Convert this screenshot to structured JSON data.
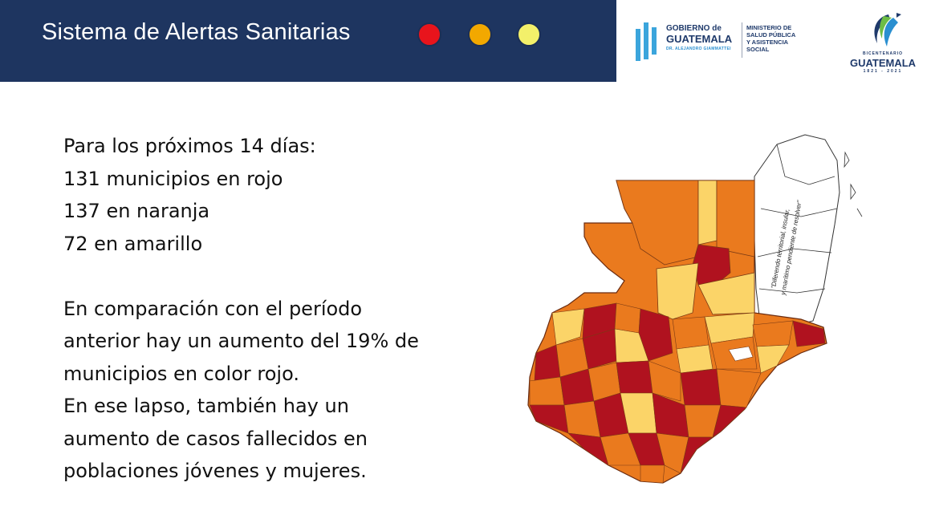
{
  "header": {
    "title": "Sistema de Alertas Sanitarias",
    "alert_levels": [
      {
        "name": "rojo",
        "color": "#e8141c"
      },
      {
        "name": "naranja",
        "color": "#f2a800"
      },
      {
        "name": "amarillo",
        "color": "#f3f06a"
      }
    ]
  },
  "logos": {
    "gobierno": {
      "line1": "GOBIERNO de",
      "line2": "GUATEMALA",
      "line3": "DR. ALEJANDRO GIAMMATTEI",
      "ministry": "MINISTERIO DE\nSALUD PÚBLICA\nY ASISTENCIA\nSOCIAL"
    },
    "bicentenario": {
      "top": "BICENTENARIO",
      "main": "GUATEMALA",
      "years": "1821 - 2021"
    }
  },
  "content": {
    "lines_group1": [
      "Para los próximos 14 días:",
      "131 municipios en rojo",
      "137 en naranja",
      "72 en amarillo"
    ],
    "lines_group2": [
      "En comparación con el período",
      "anterior hay un aumento del 19% de",
      "municipios en color rojo.",
      "En ese lapso, también hay un",
      "aumento de casos fallecidos en",
      "poblaciones jóvenes y  mujeres."
    ]
  },
  "map": {
    "note_line1": "\"Diferendo territorial, insular,",
    "note_line2": "y marítimo pendiente de resolver\"",
    "colors": {
      "red": "#b0121f",
      "orange": "#ea7a1e",
      "yellow": "#fbd468",
      "belize": "#ffffff"
    }
  }
}
